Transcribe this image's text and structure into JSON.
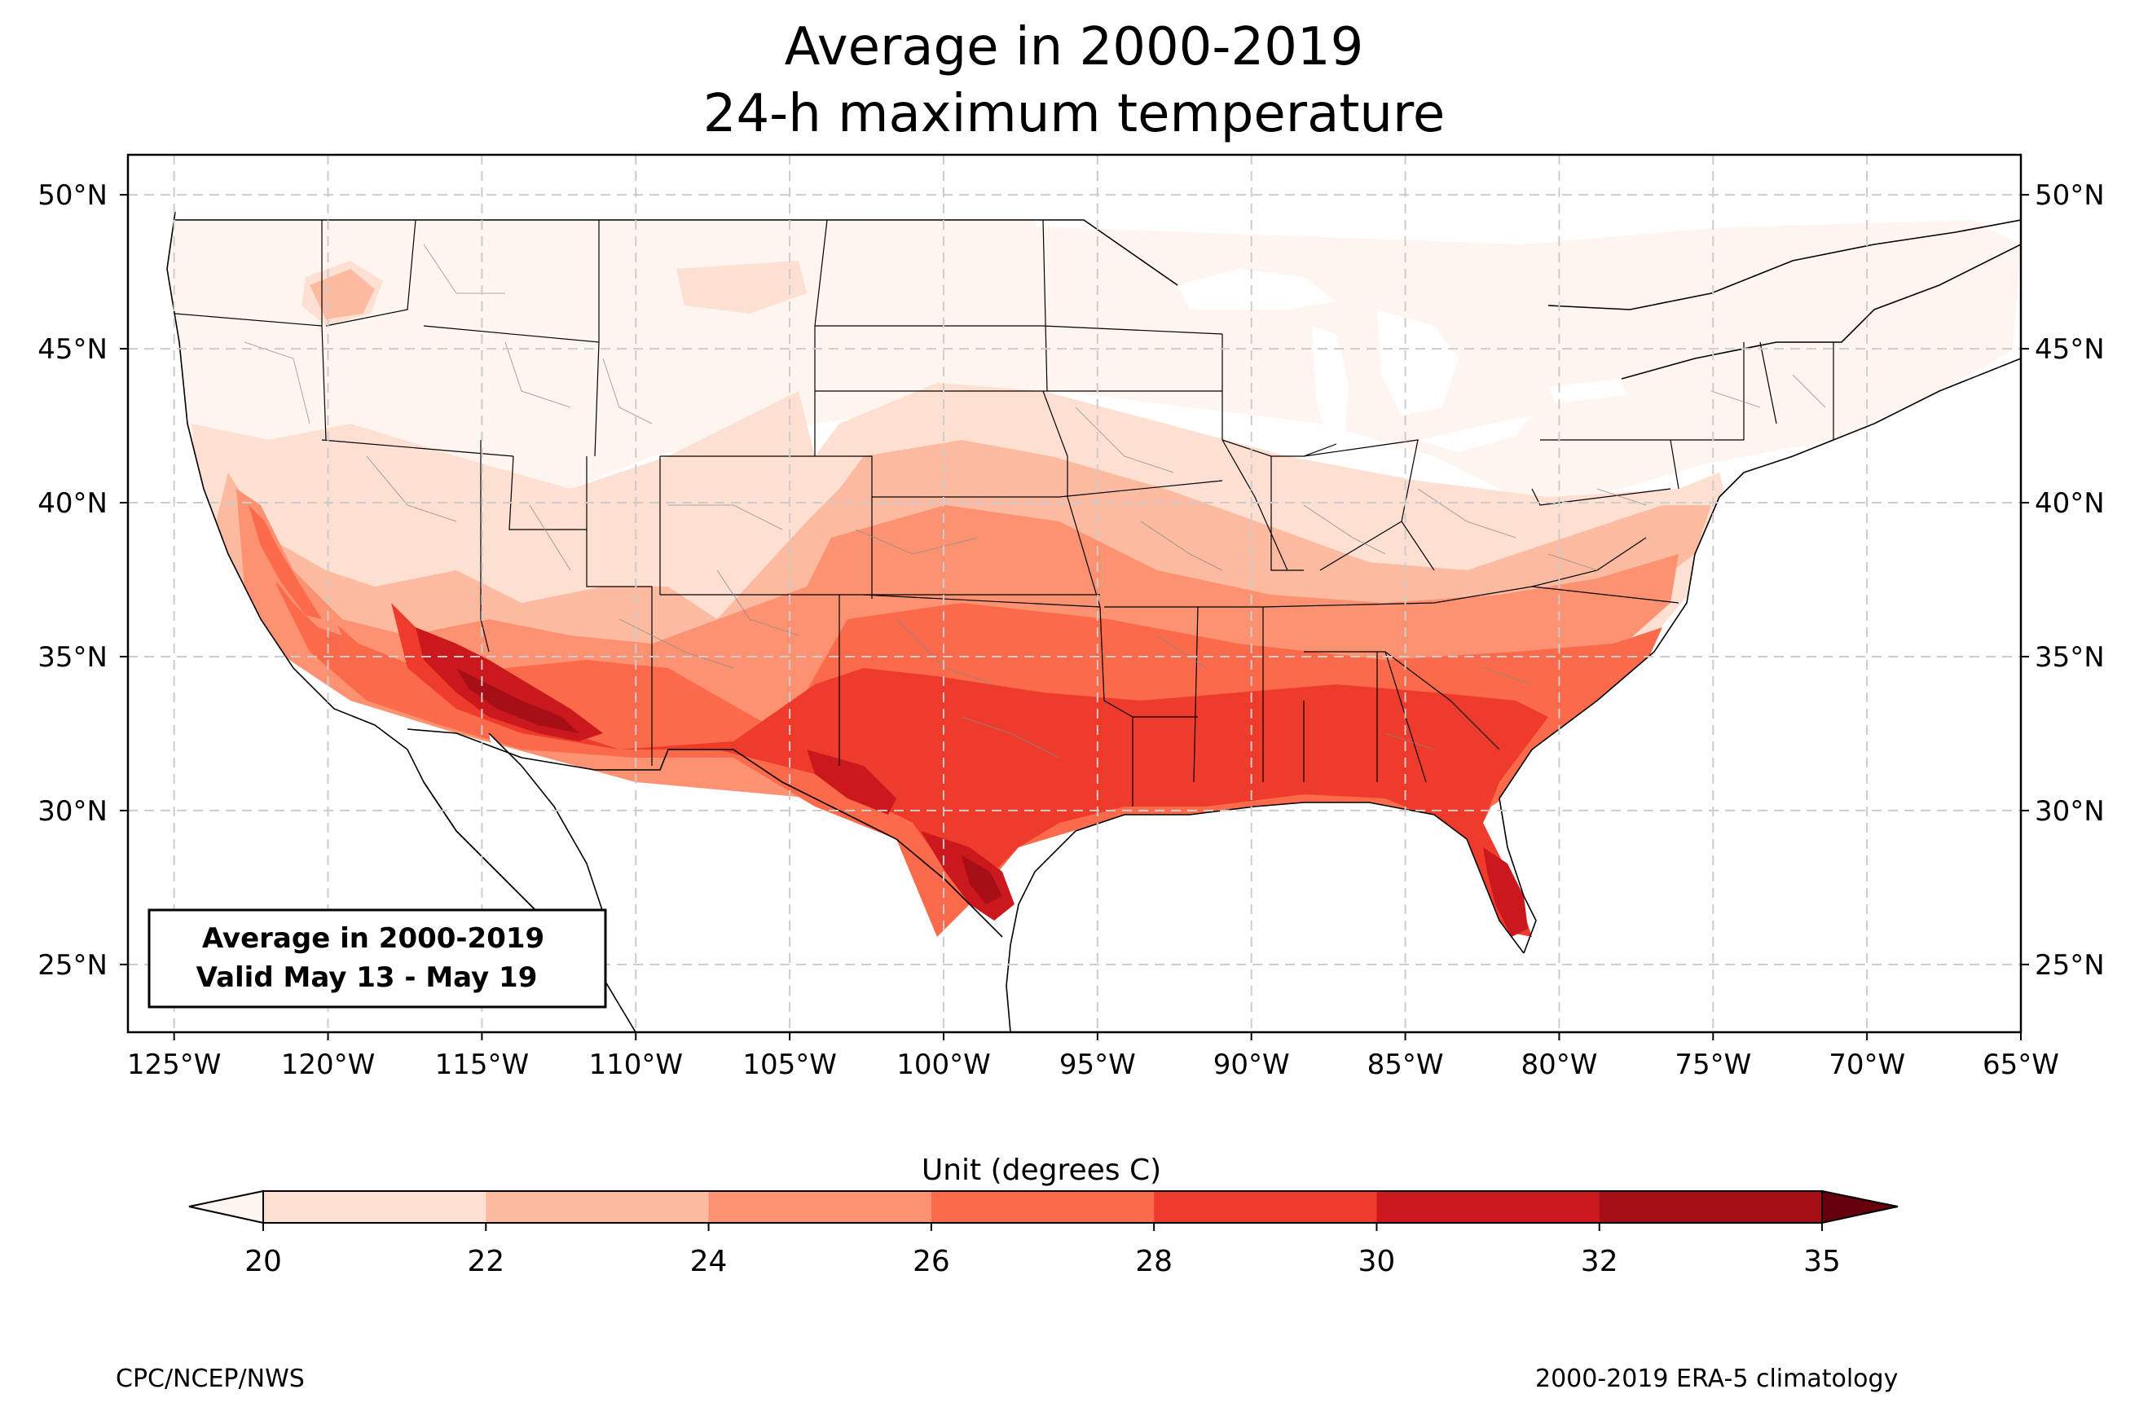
{
  "title_line1": "Average in 2000-2019",
  "title_line2": "24-h maximum temperature",
  "map": {
    "lon_range": [
      -126.5,
      -65
    ],
    "lat_range": [
      22.8,
      51.3
    ],
    "gridlines": true,
    "lon_ticks": [
      "125°W",
      "120°W",
      "115°W",
      "110°W",
      "105°W",
      "100°W",
      "95°W",
      "90°W",
      "85°W",
      "80°W",
      "75°W",
      "70°W",
      "65°W"
    ],
    "lat_ticks": [
      "50°N",
      "45°N",
      "40°N",
      "35°N",
      "30°N",
      "25°N"
    ],
    "info_box": {
      "line1": "Average in 2000-2019",
      "line2": "Valid May 13 - May 19"
    }
  },
  "colorbar": {
    "label": "Unit (degrees C)",
    "levels": [
      "20",
      "22",
      "24",
      "26",
      "28",
      "30",
      "32",
      "35"
    ],
    "colors": [
      "#fde0d2",
      "#fcbba1",
      "#fc9272",
      "#fb6a4a",
      "#ef3b2c",
      "#cb181d",
      "#a50f15"
    ],
    "under_color": "#fff5f0",
    "over_color": "#67000d"
  },
  "footer_left": "CPC/NCEP/NWS",
  "footer_right": "2000-2019 ERA-5 climatology"
}
